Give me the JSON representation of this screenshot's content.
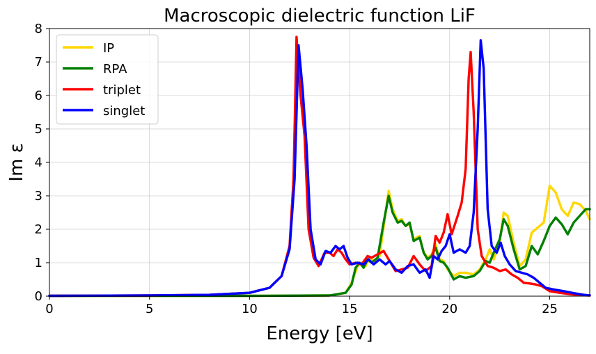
{
  "chart_data": {
    "type": "line",
    "title": "Macroscopic dielectric function LiF",
    "xlabel": "Energy [eV]",
    "ylabel": "Im ε",
    "xlim": [
      0,
      27
    ],
    "ylim": [
      0,
      8
    ],
    "xticks": [
      0,
      5,
      10,
      15,
      20,
      25
    ],
    "yticks": [
      0,
      1,
      2,
      3,
      4,
      5,
      6,
      7,
      8
    ],
    "grid": true,
    "legend_position": "upper-left",
    "series": [
      {
        "name": "IP",
        "color": "#FFD700",
        "points": [
          [
            0,
            0.01
          ],
          [
            10,
            0.01
          ],
          [
            14,
            0.02
          ],
          [
            14.8,
            0.1
          ],
          [
            15.1,
            0.4
          ],
          [
            15.4,
            0.9
          ],
          [
            15.6,
            1.0
          ],
          [
            15.8,
            0.9
          ],
          [
            16.0,
            1.15
          ],
          [
            16.2,
            1.05
          ],
          [
            16.5,
            1.2
          ],
          [
            16.8,
            2.5
          ],
          [
            16.95,
            3.15
          ],
          [
            17.15,
            2.6
          ],
          [
            17.4,
            2.25
          ],
          [
            17.6,
            2.3
          ],
          [
            17.8,
            2.1
          ],
          [
            18.0,
            2.15
          ],
          [
            18.2,
            1.7
          ],
          [
            18.5,
            1.8
          ],
          [
            18.7,
            1.3
          ],
          [
            18.9,
            1.15
          ],
          [
            19.1,
            1.25
          ],
          [
            19.3,
            1.55
          ],
          [
            19.5,
            1.1
          ],
          [
            19.7,
            1.05
          ],
          [
            19.9,
            0.8
          ],
          [
            20.2,
            0.6
          ],
          [
            20.5,
            0.7
          ],
          [
            20.8,
            0.7
          ],
          [
            21.2,
            0.65
          ],
          [
            21.5,
            0.8
          ],
          [
            21.8,
            1.1
          ],
          [
            22.0,
            1.4
          ],
          [
            22.2,
            1.1
          ],
          [
            22.5,
            1.6
          ],
          [
            22.7,
            2.5
          ],
          [
            22.9,
            2.4
          ],
          [
            23.2,
            1.6
          ],
          [
            23.5,
            0.9
          ],
          [
            23.8,
            1.1
          ],
          [
            24.1,
            1.9
          ],
          [
            24.4,
            2.05
          ],
          [
            24.7,
            2.2
          ],
          [
            25.0,
            3.3
          ],
          [
            25.3,
            3.1
          ],
          [
            25.6,
            2.6
          ],
          [
            25.9,
            2.4
          ],
          [
            26.2,
            2.8
          ],
          [
            26.5,
            2.75
          ],
          [
            26.8,
            2.55
          ],
          [
            27,
            2.3
          ]
        ]
      },
      {
        "name": "RPA",
        "color": "#008000",
        "points": [
          [
            0,
            0.01
          ],
          [
            10,
            0.01
          ],
          [
            14,
            0.02
          ],
          [
            14.8,
            0.1
          ],
          [
            15.1,
            0.35
          ],
          [
            15.3,
            0.85
          ],
          [
            15.5,
            1.0
          ],
          [
            15.7,
            0.85
          ],
          [
            15.9,
            1.1
          ],
          [
            16.1,
            1.0
          ],
          [
            16.4,
            1.15
          ],
          [
            16.7,
            2.2
          ],
          [
            16.95,
            3.0
          ],
          [
            17.15,
            2.5
          ],
          [
            17.4,
            2.2
          ],
          [
            17.6,
            2.25
          ],
          [
            17.8,
            2.1
          ],
          [
            18.0,
            2.2
          ],
          [
            18.2,
            1.65
          ],
          [
            18.5,
            1.75
          ],
          [
            18.7,
            1.3
          ],
          [
            18.9,
            1.1
          ],
          [
            19.1,
            1.2
          ],
          [
            19.3,
            1.45
          ],
          [
            19.5,
            1.05
          ],
          [
            19.7,
            1.0
          ],
          [
            19.9,
            0.85
          ],
          [
            20.2,
            0.5
          ],
          [
            20.5,
            0.6
          ],
          [
            20.8,
            0.55
          ],
          [
            21.2,
            0.6
          ],
          [
            21.5,
            0.75
          ],
          [
            21.8,
            1.05
          ],
          [
            22.0,
            1.0
          ],
          [
            22.2,
            1.3
          ],
          [
            22.5,
            1.7
          ],
          [
            22.7,
            2.3
          ],
          [
            22.9,
            2.1
          ],
          [
            23.2,
            1.4
          ],
          [
            23.5,
            0.8
          ],
          [
            23.8,
            0.9
          ],
          [
            24.1,
            1.5
          ],
          [
            24.4,
            1.25
          ],
          [
            24.7,
            1.65
          ],
          [
            25.0,
            2.1
          ],
          [
            25.3,
            2.35
          ],
          [
            25.6,
            2.15
          ],
          [
            25.9,
            1.85
          ],
          [
            26.2,
            2.2
          ],
          [
            26.5,
            2.4
          ],
          [
            26.8,
            2.6
          ],
          [
            27,
            2.6
          ]
        ]
      },
      {
        "name": "triplet",
        "color": "#FF0000",
        "points": [
          [
            0,
            0.01
          ],
          [
            5,
            0.02
          ],
          [
            8,
            0.04
          ],
          [
            10,
            0.1
          ],
          [
            11,
            0.25
          ],
          [
            11.6,
            0.6
          ],
          [
            12.0,
            1.5
          ],
          [
            12.2,
            3.5
          ],
          [
            12.35,
            7.75
          ],
          [
            12.55,
            6.0
          ],
          [
            12.75,
            4.8
          ],
          [
            12.95,
            2.0
          ],
          [
            13.2,
            1.15
          ],
          [
            13.45,
            0.9
          ],
          [
            13.75,
            1.3
          ],
          [
            14.0,
            1.3
          ],
          [
            14.2,
            1.2
          ],
          [
            14.4,
            1.4
          ],
          [
            14.6,
            1.3
          ],
          [
            14.8,
            1.1
          ],
          [
            15.0,
            0.95
          ],
          [
            15.3,
            1.0
          ],
          [
            15.6,
            0.95
          ],
          [
            15.9,
            1.2
          ],
          [
            16.1,
            1.15
          ],
          [
            16.4,
            1.25
          ],
          [
            16.7,
            1.35
          ],
          [
            17.0,
            1.05
          ],
          [
            17.3,
            0.75
          ],
          [
            17.6,
            0.8
          ],
          [
            17.9,
            0.85
          ],
          [
            18.2,
            1.2
          ],
          [
            18.5,
            0.95
          ],
          [
            18.8,
            0.75
          ],
          [
            19.1,
            0.9
          ],
          [
            19.3,
            1.8
          ],
          [
            19.5,
            1.6
          ],
          [
            19.7,
            1.9
          ],
          [
            19.9,
            2.45
          ],
          [
            20.1,
            1.85
          ],
          [
            20.4,
            2.4
          ],
          [
            20.6,
            2.8
          ],
          [
            20.8,
            3.8
          ],
          [
            20.95,
            6.5
          ],
          [
            21.05,
            7.3
          ],
          [
            21.2,
            5.5
          ],
          [
            21.4,
            2.0
          ],
          [
            21.6,
            1.2
          ],
          [
            21.9,
            0.9
          ],
          [
            22.2,
            0.85
          ],
          [
            22.5,
            0.75
          ],
          [
            22.8,
            0.8
          ],
          [
            23.1,
            0.65
          ],
          [
            23.4,
            0.55
          ],
          [
            23.7,
            0.4
          ],
          [
            24.0,
            0.38
          ],
          [
            24.3,
            0.35
          ],
          [
            24.6,
            0.3
          ],
          [
            25.0,
            0.15
          ],
          [
            25.5,
            0.1
          ],
          [
            26.0,
            0.06
          ],
          [
            26.5,
            0.03
          ],
          [
            27,
            0.02
          ]
        ]
      },
      {
        "name": "singlet",
        "color": "#0000FF",
        "points": [
          [
            0,
            0.01
          ],
          [
            5,
            0.02
          ],
          [
            8,
            0.04
          ],
          [
            10,
            0.1
          ],
          [
            11,
            0.25
          ],
          [
            11.6,
            0.6
          ],
          [
            12.0,
            1.4
          ],
          [
            12.25,
            3.5
          ],
          [
            12.45,
            7.5
          ],
          [
            12.65,
            6.2
          ],
          [
            12.85,
            4.5
          ],
          [
            13.05,
            2.0
          ],
          [
            13.3,
            1.1
          ],
          [
            13.55,
            0.95
          ],
          [
            13.8,
            1.35
          ],
          [
            14.05,
            1.3
          ],
          [
            14.3,
            1.5
          ],
          [
            14.5,
            1.4
          ],
          [
            14.7,
            1.5
          ],
          [
            14.9,
            1.15
          ],
          [
            15.1,
            0.95
          ],
          [
            15.4,
            1.0
          ],
          [
            15.7,
            0.95
          ],
          [
            15.95,
            1.1
          ],
          [
            16.2,
            0.95
          ],
          [
            16.5,
            1.1
          ],
          [
            16.8,
            0.95
          ],
          [
            17.0,
            1.05
          ],
          [
            17.3,
            0.8
          ],
          [
            17.6,
            0.7
          ],
          [
            17.9,
            0.9
          ],
          [
            18.2,
            0.95
          ],
          [
            18.5,
            0.7
          ],
          [
            18.8,
            0.8
          ],
          [
            19.0,
            0.55
          ],
          [
            19.2,
            1.2
          ],
          [
            19.4,
            1.1
          ],
          [
            19.6,
            1.35
          ],
          [
            19.8,
            1.5
          ],
          [
            20.0,
            1.85
          ],
          [
            20.2,
            1.3
          ],
          [
            20.5,
            1.4
          ],
          [
            20.8,
            1.3
          ],
          [
            21.0,
            1.5
          ],
          [
            21.2,
            2.5
          ],
          [
            21.4,
            5.0
          ],
          [
            21.55,
            7.65
          ],
          [
            21.7,
            6.8
          ],
          [
            21.9,
            2.6
          ],
          [
            22.1,
            1.5
          ],
          [
            22.35,
            1.3
          ],
          [
            22.55,
            1.6
          ],
          [
            22.75,
            1.2
          ],
          [
            23.0,
            0.95
          ],
          [
            23.3,
            0.75
          ],
          [
            23.6,
            0.7
          ],
          [
            23.9,
            0.65
          ],
          [
            24.2,
            0.55
          ],
          [
            24.5,
            0.4
          ],
          [
            24.8,
            0.25
          ],
          [
            25.2,
            0.2
          ],
          [
            25.7,
            0.15
          ],
          [
            26.2,
            0.09
          ],
          [
            26.7,
            0.04
          ],
          [
            27,
            0.02
          ]
        ]
      }
    ]
  }
}
